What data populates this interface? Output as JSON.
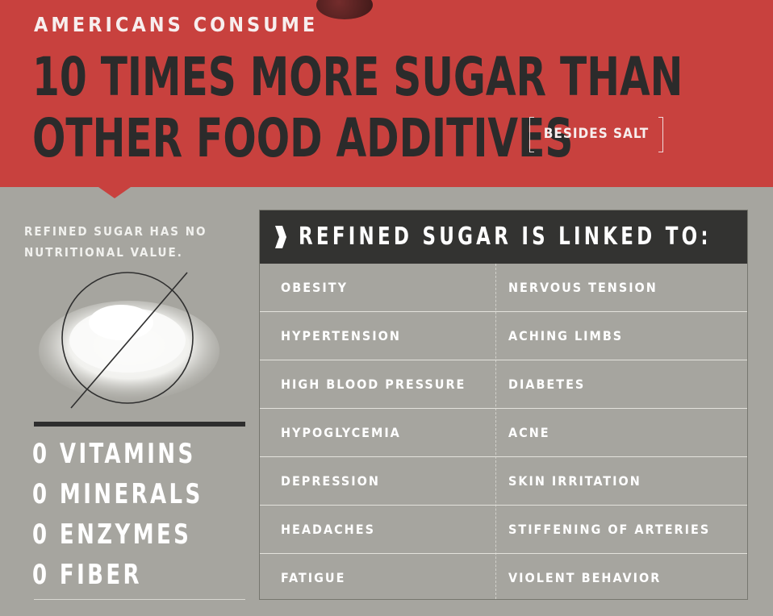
{
  "header": {
    "kicker": "AMERICANS CONSUME",
    "headline_line1": "10 TIMES MORE SUGAR THAN",
    "headline_line2": "OTHER FOOD ADDITIVES",
    "tag": "BESIDES SALT"
  },
  "left": {
    "note": "REFINED SUGAR HAS NO NUTRITIONAL VALUE.",
    "zeros": [
      "0 VITAMINS",
      "0 MINERALS",
      "0 ENZYMES",
      "0 FIBER"
    ]
  },
  "panel": {
    "title": "REFINED SUGAR IS LINKED TO:",
    "rows": [
      {
        "left": "OBESITY",
        "right": "NERVOUS TENSION"
      },
      {
        "left": "HYPERTENSION",
        "right": "ACHING LIMBS"
      },
      {
        "left": "HIGH BLOOD PRESSURE",
        "right": "DIABETES"
      },
      {
        "left": "HYPOGLYCEMIA",
        "right": "ACNE"
      },
      {
        "left": "DEPRESSION",
        "right": "SKIN IRRITATION"
      },
      {
        "left": "HEADACHES",
        "right": "STIFFENING OF ARTERIES"
      },
      {
        "left": "FATIGUE",
        "right": "VIOLENT BEHAVIOR"
      }
    ]
  },
  "icons": {
    "sugar_pile": "sugar-pile-crossed-icon",
    "chevron": "chevron-right-icon"
  },
  "colors": {
    "header": "#c8413e",
    "background": "#a6a59f",
    "panel_header": "#333331",
    "text_dark": "#2b2b2b"
  }
}
